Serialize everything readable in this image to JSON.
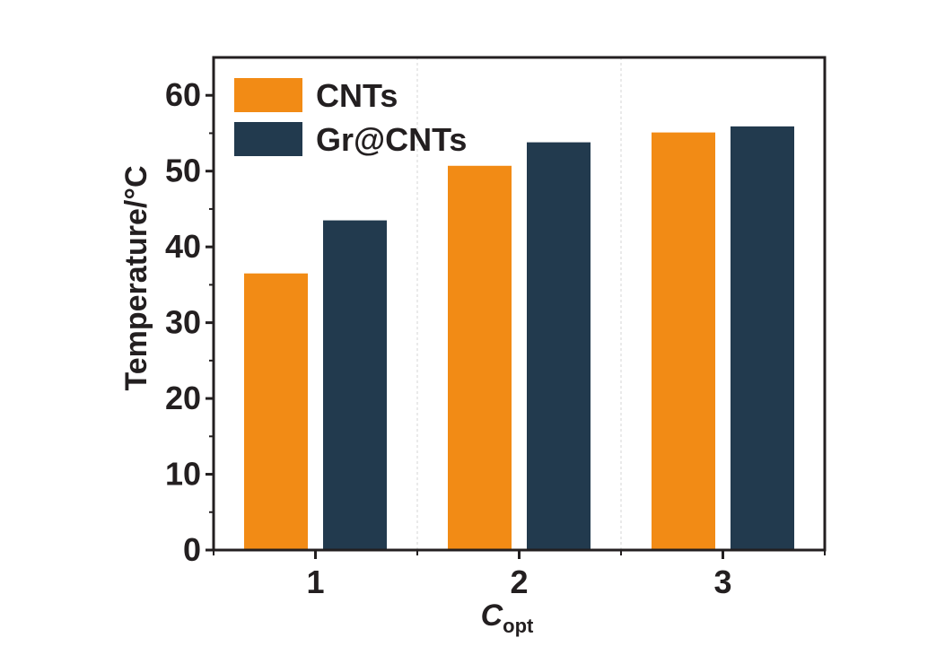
{
  "chart_data": {
    "type": "bar",
    "categories": [
      "1",
      "2",
      "3"
    ],
    "series": [
      {
        "name": "CNTs",
        "values": [
          36.5,
          50.7,
          55.1
        ],
        "color": "#f28b15"
      },
      {
        "name": "Gr@CNTs",
        "values": [
          43.5,
          53.8,
          55.9
        ],
        "color": "#223a4e"
      }
    ],
    "xlabel": {
      "main": "C",
      "sub": "opt"
    },
    "ylabel": "Temperature/°C",
    "ylim": [
      0,
      65
    ],
    "yticks": [
      "0",
      "10",
      "20",
      "30",
      "40",
      "50",
      "60"
    ],
    "legend_position": "top-left",
    "grid": "dashed vertical separators"
  }
}
